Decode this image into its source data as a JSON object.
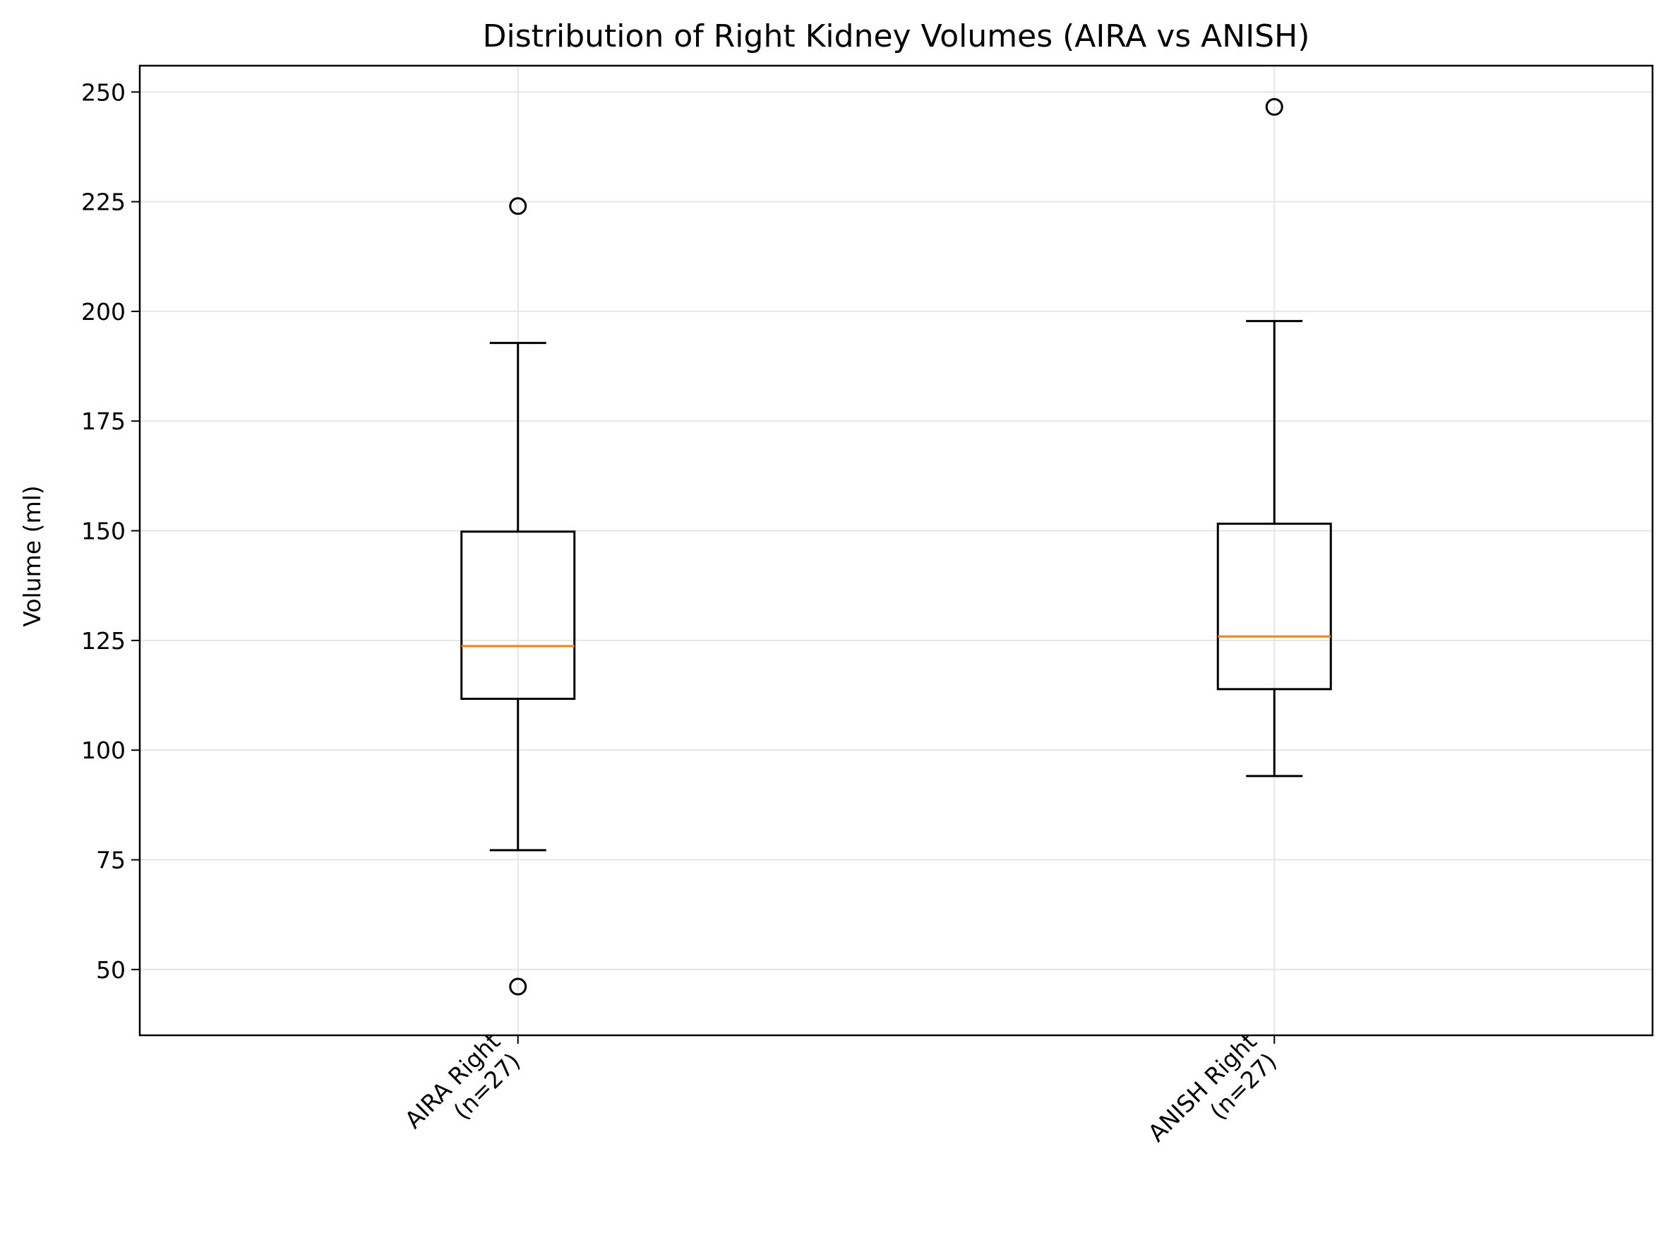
{
  "chart_data": {
    "type": "boxplot",
    "title": "Distribution of Right Kidney Volumes (AIRA vs ANISH)",
    "xlabel": "",
    "ylabel": "Volume (ml)",
    "ylim": [
      35,
      256
    ],
    "yticks": [
      50,
      75,
      100,
      125,
      150,
      175,
      200,
      225,
      250
    ],
    "grid": true,
    "categories": [
      [
        "AIRA Right",
        "(n=27)"
      ],
      [
        "ANISH Right",
        "(n=27)"
      ]
    ],
    "boxes": [
      {
        "whisker_low": 77.2,
        "q1": 111.7,
        "median": 123.7,
        "q3": 149.8,
        "whisker_high": 192.8,
        "outliers": [
          46.1,
          224.0
        ]
      },
      {
        "whisker_low": 94.1,
        "q1": 113.9,
        "median": 125.9,
        "q3": 151.6,
        "whisker_high": 197.8,
        "outliers": [
          246.6
        ]
      }
    ],
    "colors": {
      "box": "#000000",
      "median": "#ff7f0e",
      "grid": "#e6e6e6",
      "background": "#ffffff"
    }
  }
}
